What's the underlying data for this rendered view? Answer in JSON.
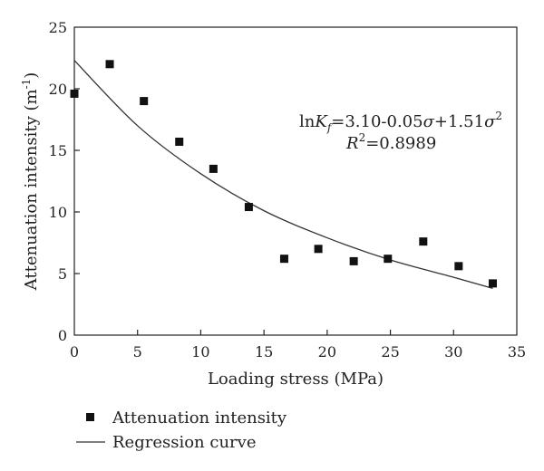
{
  "chart_data": {
    "type": "scatter",
    "xlabel": "Loading stress (MPa)",
    "ylabel": "Attenuation intensity (m",
    "ylabel_sup": "-1",
    "ylabel_close": ")",
    "xlim": [
      0,
      35
    ],
    "ylim": [
      0,
      25
    ],
    "xticks": [
      "0",
      "5",
      "10",
      "15",
      "20",
      "25",
      "30",
      "35"
    ],
    "yticks": [
      "0",
      "5",
      "10",
      "15",
      "20",
      "25"
    ],
    "grid": false,
    "legend_position": "bottom-left",
    "series": [
      {
        "name": "Attenuation intensity",
        "kind": "scatter",
        "x": [
          0,
          2.8,
          5.5,
          8.3,
          11.0,
          13.8,
          16.6,
          19.3,
          22.1,
          24.8,
          27.6,
          30.4,
          33.1
        ],
        "y": [
          19.6,
          22.0,
          19.0,
          15.7,
          13.5,
          10.4,
          6.2,
          7.0,
          6.0,
          6.2,
          7.6,
          5.6,
          4.2
        ]
      },
      {
        "name": "Regression curve",
        "kind": "line",
        "x": [
          0,
          5,
          10,
          15,
          20,
          25,
          30,
          33.1
        ],
        "y": [
          22.3,
          17.0,
          13.1,
          10.1,
          7.9,
          6.1,
          4.7,
          3.8
        ]
      }
    ],
    "annotation": {
      "line1_prefix": "ln",
      "line1_var": "K",
      "line1_sub": "f",
      "line1_eq": "=3.10-0.05",
      "line1_sigma": "σ",
      "line1_plus": "+1.51",
      "line1_sigma2": "σ",
      "line1_sup": "2",
      "line2_var": "R",
      "line2_sup": "2",
      "line2_val": "=0.8989"
    }
  }
}
